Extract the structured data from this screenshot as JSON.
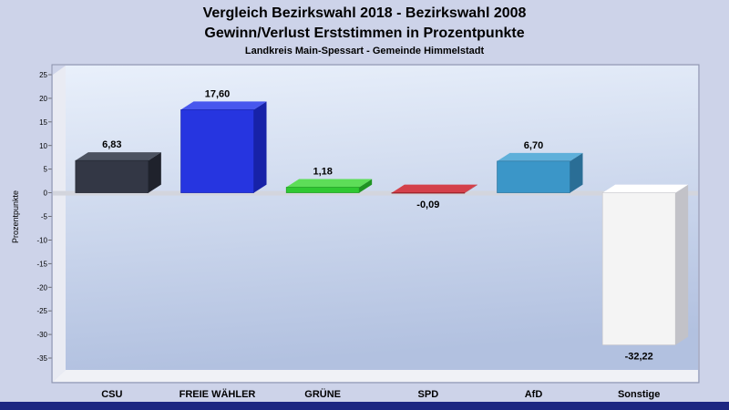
{
  "title_line1": "Vergleich Bezirkswahl 2018 - Bezirkswahl 2008",
  "title_line2": "Gewinn/Verlust Erststimmen in Prozentpunkte",
  "subtitle": "Landkreis Main-Spessart - Gemeinde Himmelstadt",
  "chart_data": {
    "type": "bar",
    "title": "Vergleich Bezirkswahl 2018 - Bezirkswahl 2008 / Gewinn/Verlust Erststimmen in Prozentpunkte",
    "subtitle": "Landkreis Main-Spessart - Gemeinde Himmelstadt",
    "categories": [
      "CSU",
      "FREIE WÄHLER",
      "GRÜNE",
      "SPD",
      "AfD",
      "Sonstige"
    ],
    "values": [
      6.83,
      17.6,
      1.18,
      -0.09,
      6.7,
      -32.22
    ],
    "value_labels": [
      "6,83",
      "17,60",
      "1,18",
      "-0,09",
      "6,70",
      "-32,22"
    ],
    "xlabel": "",
    "ylabel": "Prozentpunkte",
    "ylim": [
      -35,
      25
    ],
    "ytick_step": 5,
    "grid": false,
    "legend": "none",
    "zero_line": true,
    "style": "3d-extruded-bars",
    "bar_colors": [
      {
        "front": "#333745",
        "top": "#4c5260",
        "side": "#1f222c"
      },
      {
        "front": "#2635e0",
        "top": "#4857ee",
        "side": "#1722a8"
      },
      {
        "front": "#2fc832",
        "top": "#5ddd58",
        "side": "#1f9422"
      },
      {
        "front": "#c32430",
        "top": "#d4404a",
        "side": "#8f1a22"
      },
      {
        "front": "#3b96c8",
        "top": "#5fb0da",
        "side": "#2a6e96"
      },
      {
        "front": "#f4f4f4",
        "top": "#ffffff",
        "side": "#c2c2c8"
      }
    ]
  }
}
